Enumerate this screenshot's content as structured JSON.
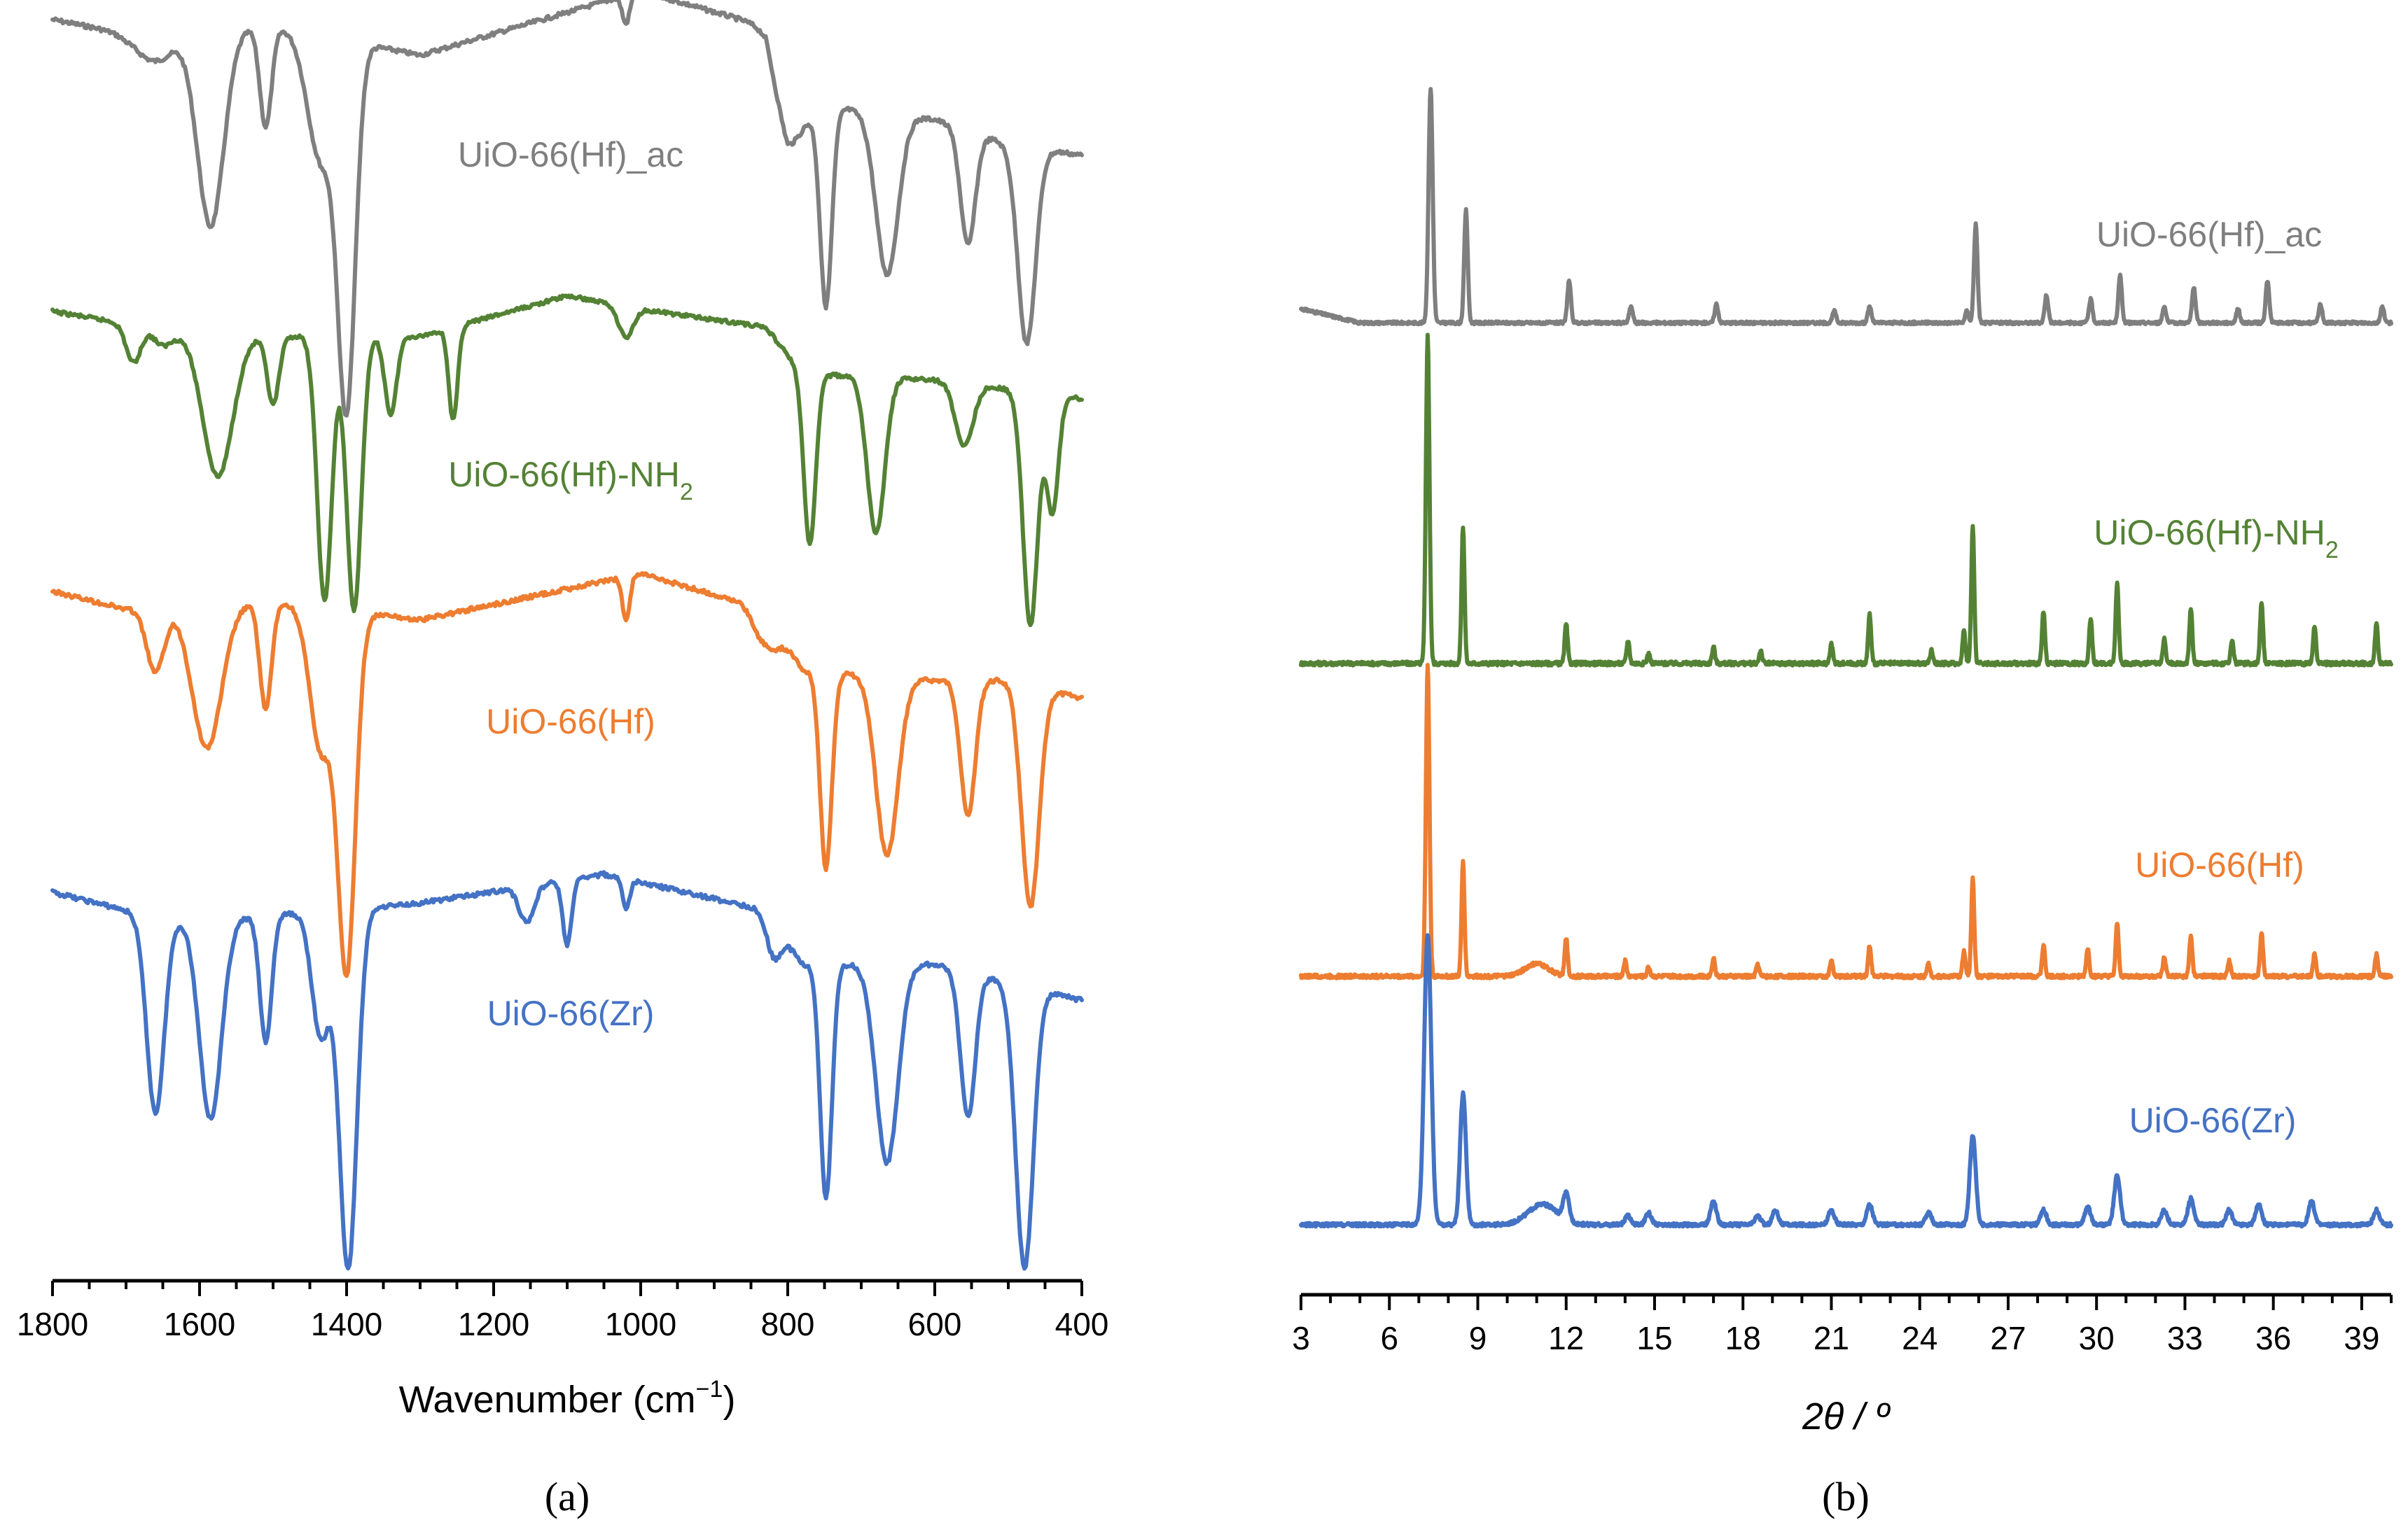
{
  "chart_data": [
    {
      "panel": "(a)",
      "type": "line",
      "xlabel": "Wavenumber (cm",
      "xlabel_sup": "−1",
      "xlabel_tail": ")",
      "xlim": [
        1800,
        400
      ],
      "x_reversed": true,
      "x_ticks": [
        1800,
        1600,
        1400,
        1200,
        1000,
        800,
        600,
        400
      ],
      "minor_step": 50,
      "series": [
        {
          "name": "UiO-66(Hf)_ac",
          "name_main": "UiO-66(Hf)_ac",
          "name_sub": "",
          "color": "#7f7f7f",
          "peaks": [
            [
              1660,
              0.08,
              25
            ],
            [
              1585,
              0.55,
              18
            ],
            [
              1510,
              0.28,
              8
            ],
            [
              1435,
              0.35,
              18
            ],
            [
              1400,
              1.0,
              12
            ],
            [
              1020,
              0.08,
              5
            ],
            [
              800,
              0.1,
              20
            ],
            [
              748,
              0.55,
              8
            ],
            [
              665,
              0.45,
              15
            ],
            [
              555,
              0.32,
              10
            ],
            [
              475,
              0.55,
              12
            ]
          ],
          "baseline": [
            [
              1800,
              0.0
            ],
            [
              1700,
              0.04
            ],
            [
              1500,
              0.02
            ],
            [
              1300,
              0.1
            ],
            [
              1000,
              -0.08
            ],
            [
              830,
              0.02
            ],
            [
              800,
              0.25
            ],
            [
              720,
              0.25
            ],
            [
              600,
              0.28
            ],
            [
              500,
              0.35
            ],
            [
              400,
              0.38
            ]
          ]
        },
        {
          "name": "UiO-66(Hf)-NH2",
          "name_main": "UiO-66(Hf)-NH",
          "name_sub": "2",
          "color": "#548235",
          "peaks": [
            [
              1690,
              0.12,
              10
            ],
            [
              1650,
              0.05,
              12
            ],
            [
              1575,
              0.45,
              20
            ],
            [
              1500,
              0.22,
              8
            ],
            [
              1430,
              0.85,
              10
            ],
            [
              1390,
              0.88,
              10
            ],
            [
              1340,
              0.25,
              8
            ],
            [
              1255,
              0.3,
              6
            ],
            [
              1020,
              0.1,
              10
            ],
            [
              770,
              0.55,
              8
            ],
            [
              680,
              0.5,
              12
            ],
            [
              560,
              0.2,
              12
            ],
            [
              470,
              0.75,
              10
            ],
            [
              440,
              0.38,
              8
            ]
          ],
          "baseline": [
            [
              1800,
              0.0
            ],
            [
              1600,
              0.08
            ],
            [
              1300,
              0.08
            ],
            [
              1100,
              -0.05
            ],
            [
              980,
              0.0
            ],
            [
              830,
              0.05
            ],
            [
              780,
              0.2
            ],
            [
              600,
              0.22
            ],
            [
              500,
              0.25
            ],
            [
              400,
              0.28
            ]
          ]
        },
        {
          "name": "UiO-66(Hf)",
          "name_main": "UiO-66(Hf)",
          "name_sub": "",
          "color": "#ed7d31",
          "peaks": [
            [
              1660,
              0.18,
              12
            ],
            [
              1590,
              0.4,
              20
            ],
            [
              1510,
              0.3,
              8
            ],
            [
              1435,
              0.4,
              15
            ],
            [
              1400,
              1.0,
              12
            ],
            [
              1020,
              0.12,
              5
            ],
            [
              830,
              0.1,
              15
            ],
            [
              748,
              0.55,
              8
            ],
            [
              665,
              0.5,
              15
            ],
            [
              555,
              0.38,
              10
            ],
            [
              470,
              0.62,
              12
            ]
          ],
          "baseline": [
            [
              1800,
              0.0
            ],
            [
              1700,
              0.05
            ],
            [
              1500,
              0.03
            ],
            [
              1300,
              0.08
            ],
            [
              1000,
              -0.05
            ],
            [
              830,
              0.05
            ],
            [
              780,
              0.22
            ],
            [
              600,
              0.25
            ],
            [
              500,
              0.25
            ],
            [
              400,
              0.3
            ]
          ]
        },
        {
          "name": "UiO-66(Zr)",
          "name_main": "UiO-66(Zr)",
          "name_sub": "",
          "color": "#4472c4",
          "peaks": [
            [
              1660,
              0.55,
              12
            ],
            [
              1585,
              0.55,
              15
            ],
            [
              1510,
              0.35,
              8
            ],
            [
              1435,
              0.35,
              12
            ],
            [
              1398,
              1.0,
              12
            ],
            [
              1155,
              0.1,
              10
            ],
            [
              1100,
              0.18,
              6
            ],
            [
              1020,
              0.08,
              5
            ],
            [
              820,
              0.1,
              10
            ],
            [
              748,
              0.65,
              8
            ],
            [
              665,
              0.55,
              15
            ],
            [
              555,
              0.4,
              10
            ],
            [
              478,
              0.78,
              12
            ]
          ],
          "baseline": [
            [
              1800,
              0.0
            ],
            [
              1700,
              0.05
            ],
            [
              1600,
              0.08
            ],
            [
              1300,
              0.03
            ],
            [
              1050,
              -0.05
            ],
            [
              830,
              0.05
            ],
            [
              780,
              0.2
            ],
            [
              600,
              0.2
            ],
            [
              500,
              0.25
            ],
            [
              400,
              0.3
            ]
          ]
        }
      ]
    },
    {
      "panel": "(b)",
      "type": "line",
      "xlabel": "2θ / º",
      "xlim": [
        3,
        40
      ],
      "x_ticks": [
        3,
        6,
        9,
        12,
        15,
        18,
        21,
        24,
        27,
        30,
        33,
        36,
        39
      ],
      "minor_step": 1,
      "series": [
        {
          "name": "UiO-66(Hf)_ac",
          "name_main": "UiO-66(Hf)_ac",
          "name_sub": "",
          "color": "#7f7f7f",
          "peaks": [
            [
              7.4,
              1.0,
              0.07
            ],
            [
              8.6,
              0.48,
              0.06
            ],
            [
              12.1,
              0.18,
              0.06
            ],
            [
              14.2,
              0.07,
              0.06
            ],
            [
              17.1,
              0.08,
              0.06
            ],
            [
              21.1,
              0.05,
              0.06
            ],
            [
              22.3,
              0.07,
              0.06
            ],
            [
              25.6,
              0.05,
              0.06
            ],
            [
              25.9,
              0.42,
              0.06
            ],
            [
              28.3,
              0.12,
              0.06
            ],
            [
              29.8,
              0.1,
              0.06
            ],
            [
              30.8,
              0.2,
              0.06
            ],
            [
              32.3,
              0.07,
              0.06
            ],
            [
              33.3,
              0.15,
              0.06
            ],
            [
              34.8,
              0.06,
              0.06
            ],
            [
              35.8,
              0.18,
              0.06
            ],
            [
              37.6,
              0.08,
              0.06
            ],
            [
              39.7,
              0.07,
              0.06
            ]
          ],
          "background": [
            [
              3,
              0.08
            ],
            [
              5,
              0.02
            ],
            [
              40,
              0.02
            ]
          ]
        },
        {
          "name": "UiO-66(Hf)-NH2",
          "name_main": "UiO-66(Hf)-NH",
          "name_sub": "2",
          "color": "#548235",
          "peaks": [
            [
              7.3,
              1.0,
              0.06
            ],
            [
              8.5,
              0.42,
              0.05
            ],
            [
              12.0,
              0.12,
              0.05
            ],
            [
              14.1,
              0.07,
              0.05
            ],
            [
              14.8,
              0.03,
              0.05
            ],
            [
              17.0,
              0.05,
              0.05
            ],
            [
              18.6,
              0.04,
              0.05
            ],
            [
              21.0,
              0.06,
              0.05
            ],
            [
              22.3,
              0.15,
              0.05
            ],
            [
              24.4,
              0.04,
              0.05
            ],
            [
              25.5,
              0.1,
              0.05
            ],
            [
              25.8,
              0.42,
              0.05
            ],
            [
              28.2,
              0.16,
              0.05
            ],
            [
              29.8,
              0.14,
              0.05
            ],
            [
              30.7,
              0.25,
              0.05
            ],
            [
              32.3,
              0.08,
              0.05
            ],
            [
              33.2,
              0.17,
              0.05
            ],
            [
              34.6,
              0.07,
              0.05
            ],
            [
              35.6,
              0.19,
              0.05
            ],
            [
              37.4,
              0.11,
              0.05
            ],
            [
              39.5,
              0.12,
              0.05
            ]
          ],
          "background": [
            [
              3,
              0.0
            ],
            [
              40,
              0.0
            ]
          ]
        },
        {
          "name": "UiO-66(Hf)",
          "name_main": "UiO-66(Hf)",
          "name_sub": "",
          "color": "#ed7d31",
          "peaks": [
            [
              7.3,
              1.0,
              0.06
            ],
            [
              8.5,
              0.37,
              0.05
            ],
            [
              11.0,
              0.04,
              0.4
            ],
            [
              12.0,
              0.12,
              0.05
            ],
            [
              14.0,
              0.05,
              0.05
            ],
            [
              14.8,
              0.03,
              0.05
            ],
            [
              17.0,
              0.06,
              0.05
            ],
            [
              18.5,
              0.04,
              0.05
            ],
            [
              21.0,
              0.05,
              0.05
            ],
            [
              22.3,
              0.1,
              0.05
            ],
            [
              24.3,
              0.04,
              0.05
            ],
            [
              25.5,
              0.08,
              0.05
            ],
            [
              25.8,
              0.32,
              0.05
            ],
            [
              28.2,
              0.1,
              0.05
            ],
            [
              29.7,
              0.09,
              0.05
            ],
            [
              30.7,
              0.17,
              0.05
            ],
            [
              32.3,
              0.06,
              0.05
            ],
            [
              33.2,
              0.13,
              0.05
            ],
            [
              34.5,
              0.05,
              0.05
            ],
            [
              35.6,
              0.14,
              0.05
            ],
            [
              37.4,
              0.07,
              0.05
            ],
            [
              39.5,
              0.07,
              0.05
            ]
          ],
          "background": [
            [
              3,
              0.0
            ],
            [
              40,
              0.0
            ]
          ]
        },
        {
          "name": "UiO-66(Zr)",
          "name_main": "UiO-66(Zr)",
          "name_sub": "",
          "color": "#4472c4",
          "peaks": [
            [
              7.3,
              1.0,
              0.12
            ],
            [
              8.5,
              0.45,
              0.1
            ],
            [
              11.2,
              0.07,
              0.5
            ],
            [
              12.0,
              0.09,
              0.1
            ],
            [
              14.1,
              0.03,
              0.1
            ],
            [
              14.8,
              0.04,
              0.1
            ],
            [
              17.0,
              0.08,
              0.1
            ],
            [
              18.5,
              0.03,
              0.1
            ],
            [
              19.1,
              0.05,
              0.1
            ],
            [
              21.0,
              0.05,
              0.1
            ],
            [
              22.3,
              0.07,
              0.1
            ],
            [
              24.3,
              0.04,
              0.1
            ],
            [
              25.8,
              0.31,
              0.1
            ],
            [
              28.2,
              0.05,
              0.1
            ],
            [
              29.7,
              0.06,
              0.1
            ],
            [
              30.7,
              0.17,
              0.1
            ],
            [
              32.3,
              0.05,
              0.1
            ],
            [
              33.2,
              0.09,
              0.1
            ],
            [
              34.5,
              0.05,
              0.1
            ],
            [
              35.5,
              0.07,
              0.1
            ],
            [
              37.3,
              0.08,
              0.1
            ],
            [
              39.5,
              0.05,
              0.1
            ]
          ],
          "background": [
            [
              3,
              0.0
            ],
            [
              40,
              0.0
            ]
          ]
        }
      ]
    }
  ]
}
